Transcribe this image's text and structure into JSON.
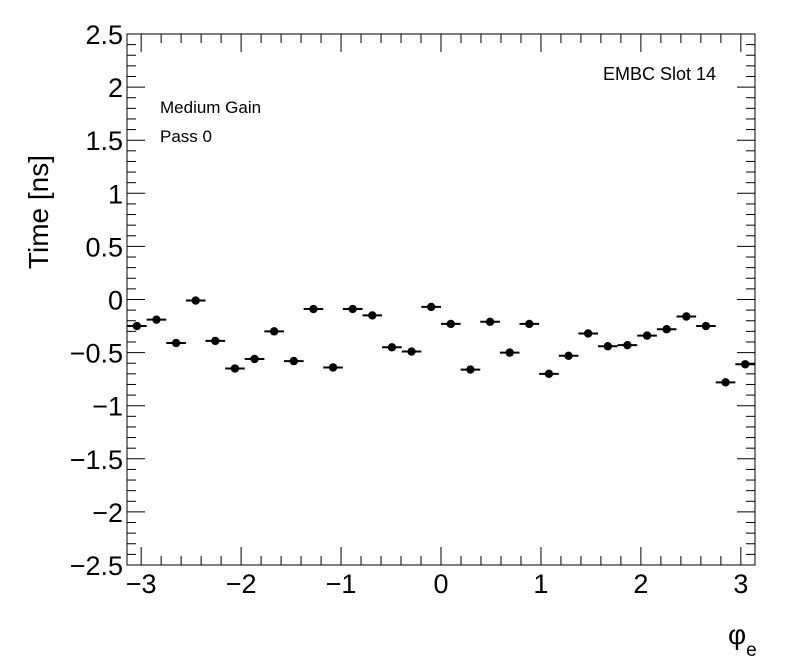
{
  "chart_data": {
    "type": "scatter",
    "title": "",
    "xlabel_symbol": "φ",
    "xlabel_sub": "e",
    "ylabel": "Time [ns]",
    "xlim": [
      -3.1416,
      3.1416
    ],
    "ylim": [
      -2.5,
      2.5
    ],
    "x_ticks": [
      -3,
      -2,
      -1,
      0,
      1,
      2,
      3
    ],
    "x_tick_labels": [
      "−3",
      "−2",
      "−1",
      "0",
      "1",
      "2",
      "3"
    ],
    "y_ticks": [
      -2.5,
      -2,
      -1.5,
      -1,
      -0.5,
      0,
      0.5,
      1,
      1.5,
      2,
      2.5
    ],
    "y_tick_labels": [
      "−2.5",
      "−2",
      "−1.5",
      "−1",
      "−0.5",
      "0",
      "0.5",
      "1",
      "1.5",
      "2",
      "2.5"
    ],
    "annotations": {
      "top_right": "EMBC Slot 14",
      "line1": "Medium Gain",
      "line2": "Pass 0"
    },
    "bin_half_width": 0.0982,
    "series": [
      {
        "marker": "filled-circle",
        "x": [
          -3.0434,
          -2.8471,
          -2.6507,
          -2.4544,
          -2.258,
          -2.0617,
          -1.8653,
          -1.669,
          -1.4726,
          -1.2763,
          -1.0799,
          -0.8836,
          -0.6872,
          -0.4909,
          -0.2945,
          -0.0982,
          0.0982,
          0.2945,
          0.4909,
          0.6872,
          0.8836,
          1.0799,
          1.2763,
          1.4726,
          1.669,
          1.8653,
          2.0617,
          2.258,
          2.4544,
          2.6507,
          2.8471,
          3.0434
        ],
        "values": [
          -0.25,
          -0.19,
          -0.41,
          -0.01,
          -0.39,
          -0.65,
          -0.56,
          -0.3,
          -0.58,
          -0.09,
          -0.64,
          -0.09,
          -0.15,
          -0.45,
          -0.49,
          -0.07,
          -0.23,
          -0.66,
          -0.21,
          -0.5,
          -0.23,
          -0.7,
          -0.53,
          -0.32,
          -0.44,
          -0.43,
          -0.34,
          -0.28,
          -0.16,
          -0.25,
          -0.78,
          -0.61
        ]
      }
    ]
  }
}
